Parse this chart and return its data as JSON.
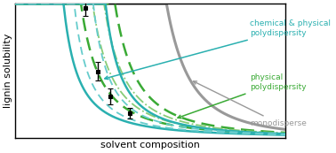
{
  "xlabel": "solvent composition",
  "ylabel": "lignin solubility",
  "bg_color": "#ffffff",
  "monodisperse_color": "#999999",
  "physical_color": "#3aaa35",
  "light_physical_color": "#88cc77",
  "chem_phys_color": "#2ab0b0",
  "light_chem_phys_color": "#66cccc",
  "annotation_chem_phys": "chemical & physical\npolydispersity",
  "annotation_physical": "physical\npolydispersity",
  "annotation_mono": "monodisperse"
}
